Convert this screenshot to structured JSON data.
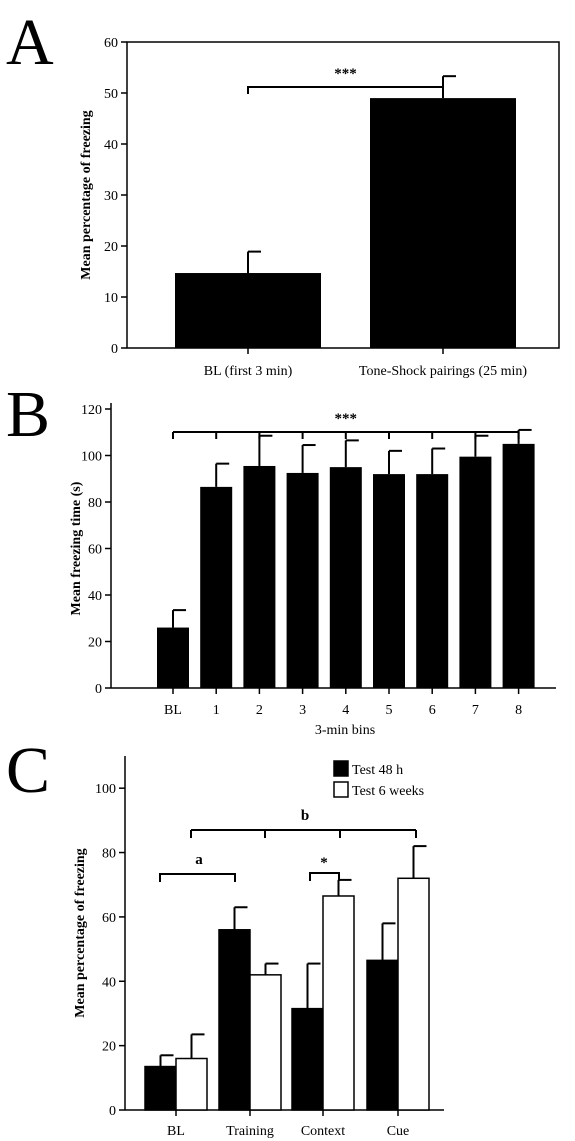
{
  "panels": {
    "A": {
      "letter": "A"
    },
    "B": {
      "letter": "B"
    },
    "C": {
      "letter": "C"
    }
  },
  "chart_data": [
    {
      "panel": "A",
      "type": "bar",
      "categories": [
        "BL (first 3 min)",
        "Tone-Shock pairings (25 min)"
      ],
      "values": [
        14.7,
        49.0
      ],
      "errors": [
        4.2,
        4.3
      ],
      "ylabel": "Mean percentage of freezing",
      "xlabel": "",
      "ylim": [
        0,
        60
      ],
      "yticks": [
        0,
        10,
        20,
        30,
        40,
        50,
        60
      ],
      "significance": [
        {
          "label": "***",
          "from": 0,
          "to": 1
        }
      ],
      "colors": {
        "bar": "#000000"
      }
    },
    {
      "panel": "B",
      "type": "bar",
      "categories": [
        "BL",
        "1",
        "2",
        "3",
        "4",
        "5",
        "6",
        "7",
        "8"
      ],
      "values": [
        26,
        86.5,
        95.5,
        92.5,
        95,
        92,
        92,
        99.5,
        105
      ],
      "errors": [
        7.5,
        10,
        13,
        12,
        11.5,
        10,
        11,
        9,
        6
      ],
      "ylabel": "Mean freezing time (s)",
      "xlabel": "3-min bins",
      "ylim": [
        0,
        120
      ],
      "yticks": [
        0,
        20,
        40,
        60,
        80,
        100,
        120
      ],
      "significance": [
        {
          "label": "***",
          "from": 0,
          "to": 8
        }
      ],
      "colors": {
        "bar": "#000000"
      }
    },
    {
      "panel": "C",
      "type": "bar",
      "categories": [
        "BL",
        "Training",
        "Context",
        "Cue"
      ],
      "series": [
        {
          "name": "Test 48 h",
          "values": [
            13.5,
            56,
            31.5,
            46.5
          ],
          "errors": [
            3.5,
            7,
            14,
            11.5
          ],
          "color": "#000000"
        },
        {
          "name": "Test 6 weeks",
          "values": [
            16,
            42,
            66.5,
            72
          ],
          "errors": [
            7.5,
            3.5,
            5,
            10
          ],
          "color": "#ffffff"
        }
      ],
      "ylabel": "Mean percentage of freezing",
      "xlabel": "",
      "ylim": [
        0,
        110
      ],
      "yticks": [
        0,
        20,
        40,
        60,
        80,
        100
      ],
      "significance": [
        {
          "label": "a",
          "between": "BL vs Training"
        },
        {
          "label": "b",
          "between": "BL vs Training, Context, Cue"
        },
        {
          "label": "*",
          "between": "Context groups"
        }
      ],
      "legend": "top-right"
    }
  ]
}
